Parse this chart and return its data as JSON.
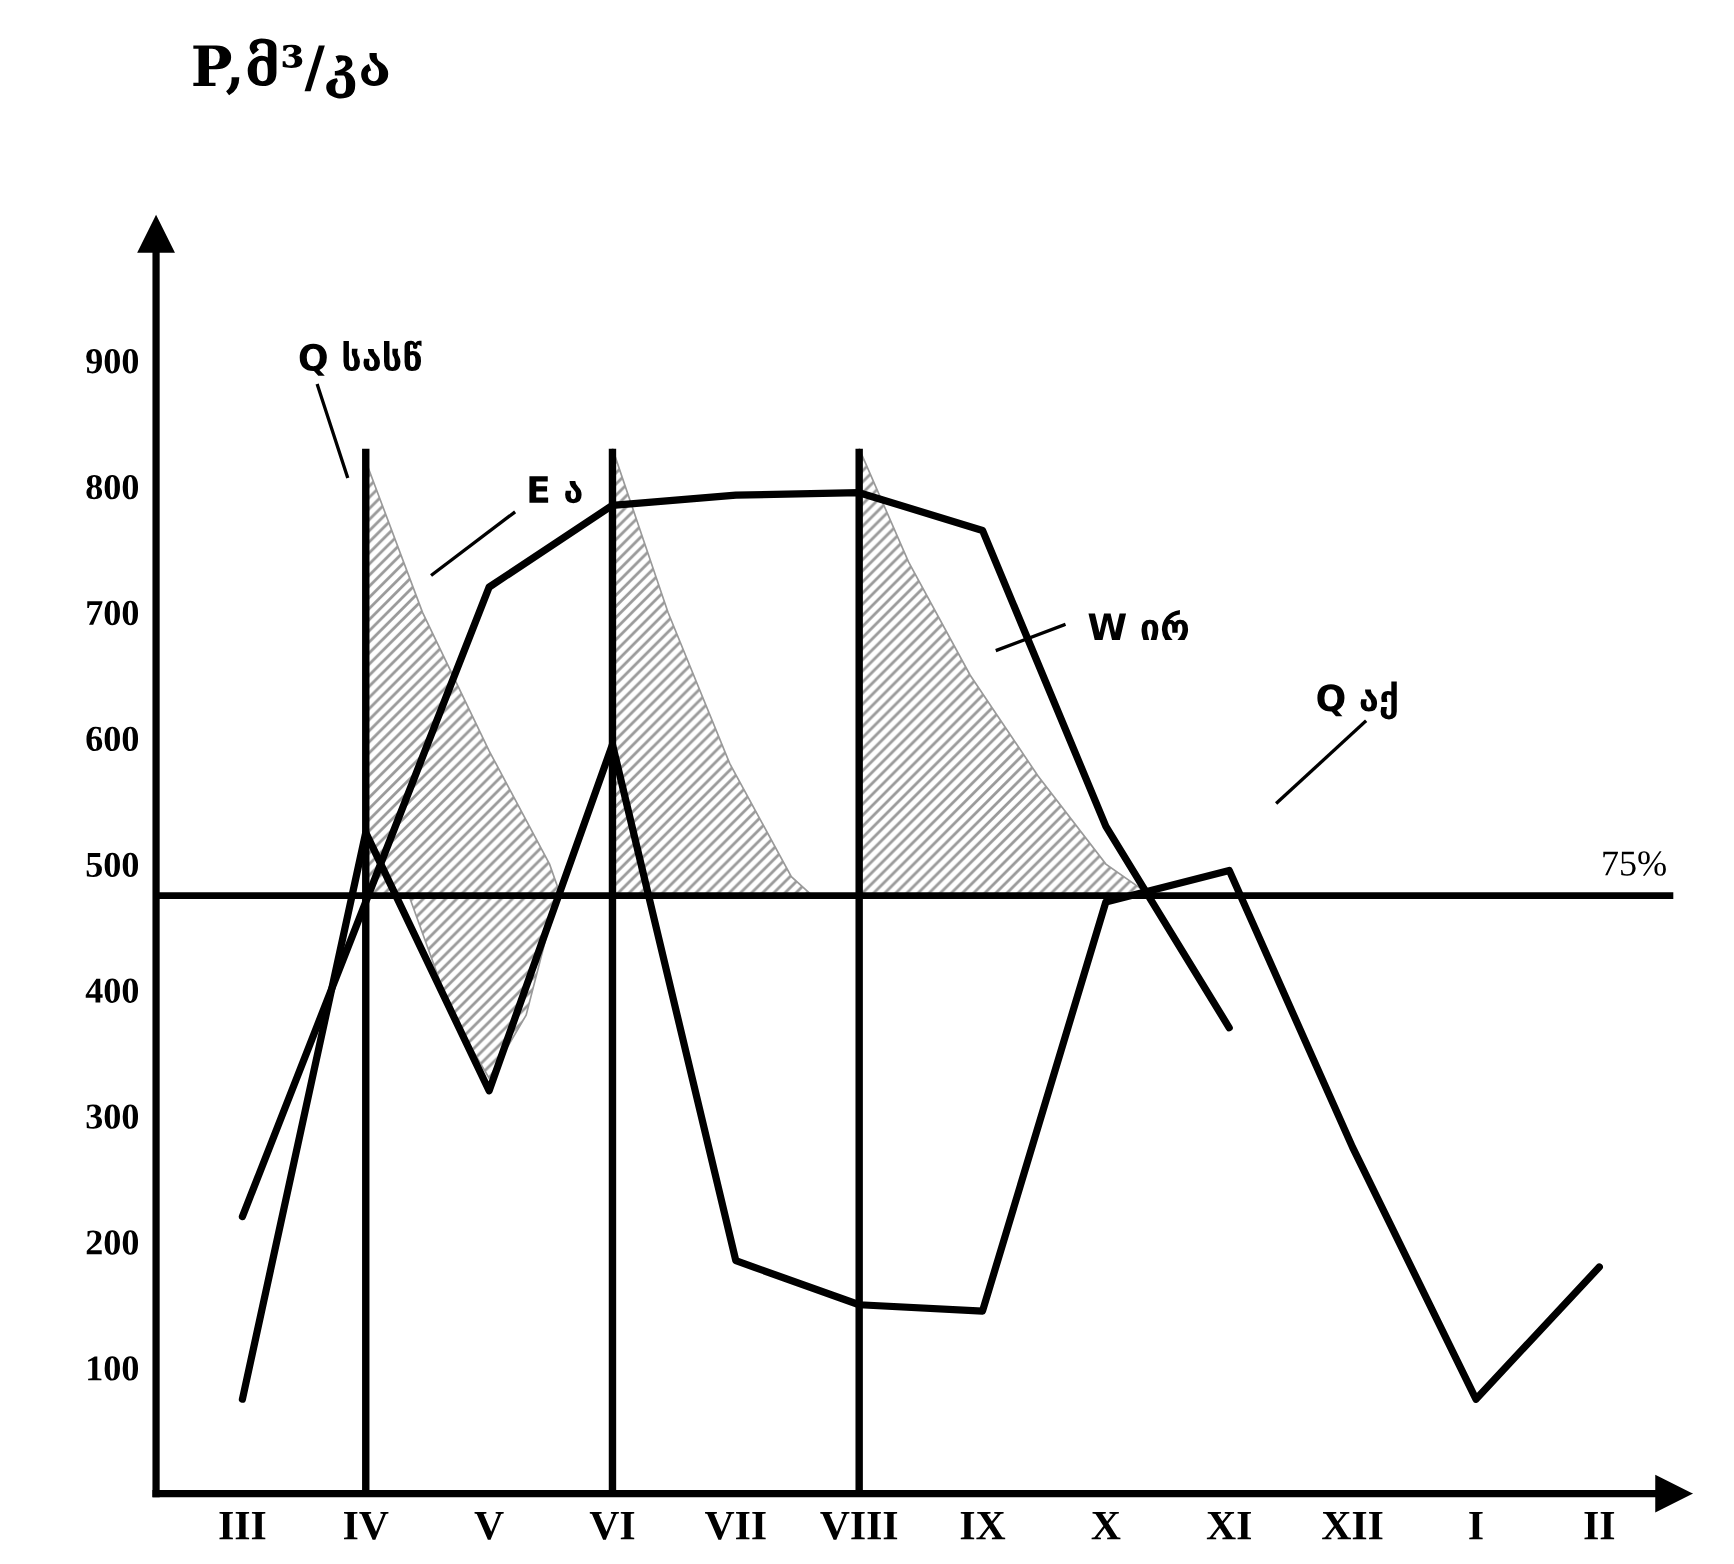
{
  "chart_data": {
    "type": "line",
    "title": "P,მ³/კა",
    "categories": [
      "III",
      "IV",
      "V",
      "VI",
      "VII",
      "VIII",
      "IX",
      "X",
      "XI",
      "XII",
      "I",
      "II"
    ],
    "ylim": [
      0,
      1000
    ],
    "yticks": [
      100,
      200,
      300,
      400,
      500,
      600,
      700,
      800,
      900
    ],
    "grid": false,
    "marker": "none",
    "line_style": "solid",
    "series": [
      {
        "type": "bar",
        "color": "#000000",
        "values": [
          null,
          830,
          null,
          830,
          null,
          830,
          null,
          null,
          null,
          null,
          null,
          null
        ]
      },
      {
        "color": "#000000",
        "values": [
          75,
          525,
          320,
          595,
          185,
          150,
          145,
          470,
          495,
          275,
          75,
          180
        ]
      },
      {
        "color": "#000000",
        "values": [
          220,
          470,
          720,
          785,
          793,
          795,
          765,
          530,
          370,
          null,
          null,
          null
        ]
      }
    ],
    "ref_lines": [
      {
        "axis": "y",
        "value": 475,
        "color": "#000000"
      }
    ],
    "annotations": [
      "Q სასწ",
      "E ა",
      "W ირ",
      "Q აქ",
      "75%"
    ]
  }
}
